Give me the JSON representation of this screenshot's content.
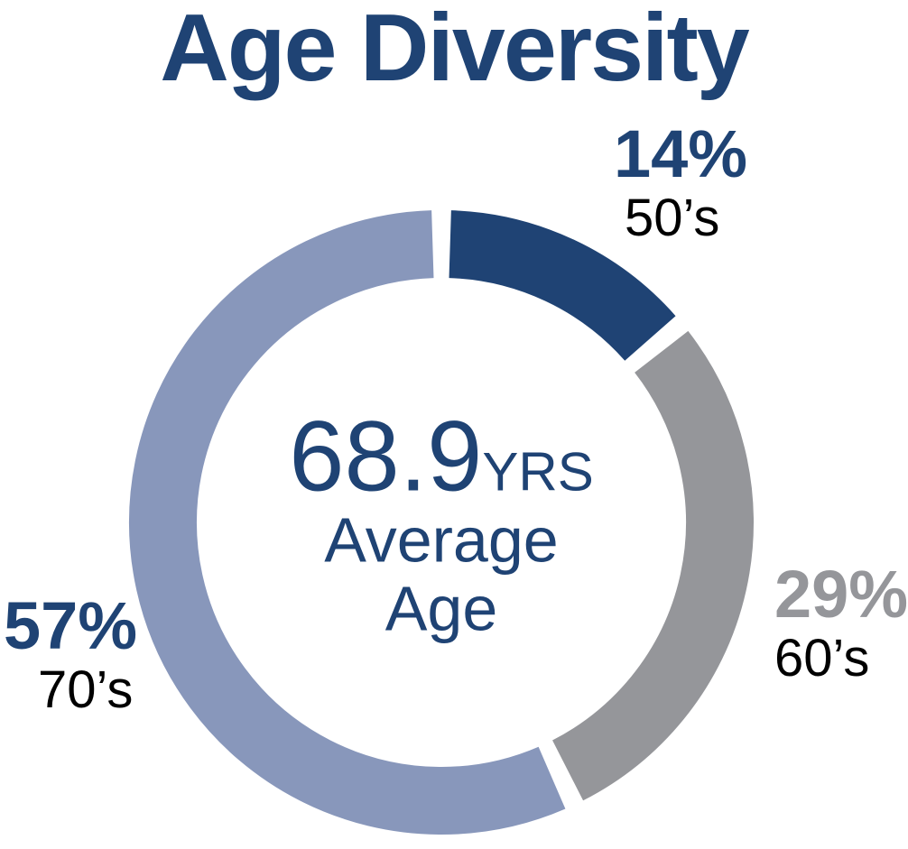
{
  "page": {
    "background": "#FFFFFF"
  },
  "chart_data": {
    "type": "pie",
    "subtype": "donut",
    "title": "Age Diversity",
    "title_color": "#1F4374",
    "categories": [
      "50’s",
      "60’s",
      "70’s"
    ],
    "values": [
      14,
      29,
      57
    ],
    "segments": [
      {
        "id": "50s",
        "label": "50’s",
        "percent": 14,
        "percent_label": "14%",
        "color": "#1F4374",
        "percent_label_color": "#1F4374",
        "decade_label_color": "#000000"
      },
      {
        "id": "60s",
        "label": "60’s",
        "percent": 29,
        "percent_label": "29%",
        "color": "#95969A",
        "percent_label_color": "#95969A",
        "decade_label_color": "#000000"
      },
      {
        "id": "70s",
        "label": "70’s",
        "percent": 57,
        "percent_label": "57%",
        "color": "#8897BB",
        "percent_label_color": "#1F4374",
        "decade_label_color": "#000000"
      }
    ],
    "center_text": {
      "value": "68.9",
      "unit": "YRS",
      "caption_line1": "Average",
      "caption_line2": "Age",
      "color": "#1F4374"
    },
    "layout_hints": {
      "start_angle_deg": 0,
      "direction": "clockwise",
      "segment_gap_deg": 3.6,
      "donut_hole_ratio": 0.78,
      "legend": "none",
      "labels": "outside-callouts"
    }
  }
}
